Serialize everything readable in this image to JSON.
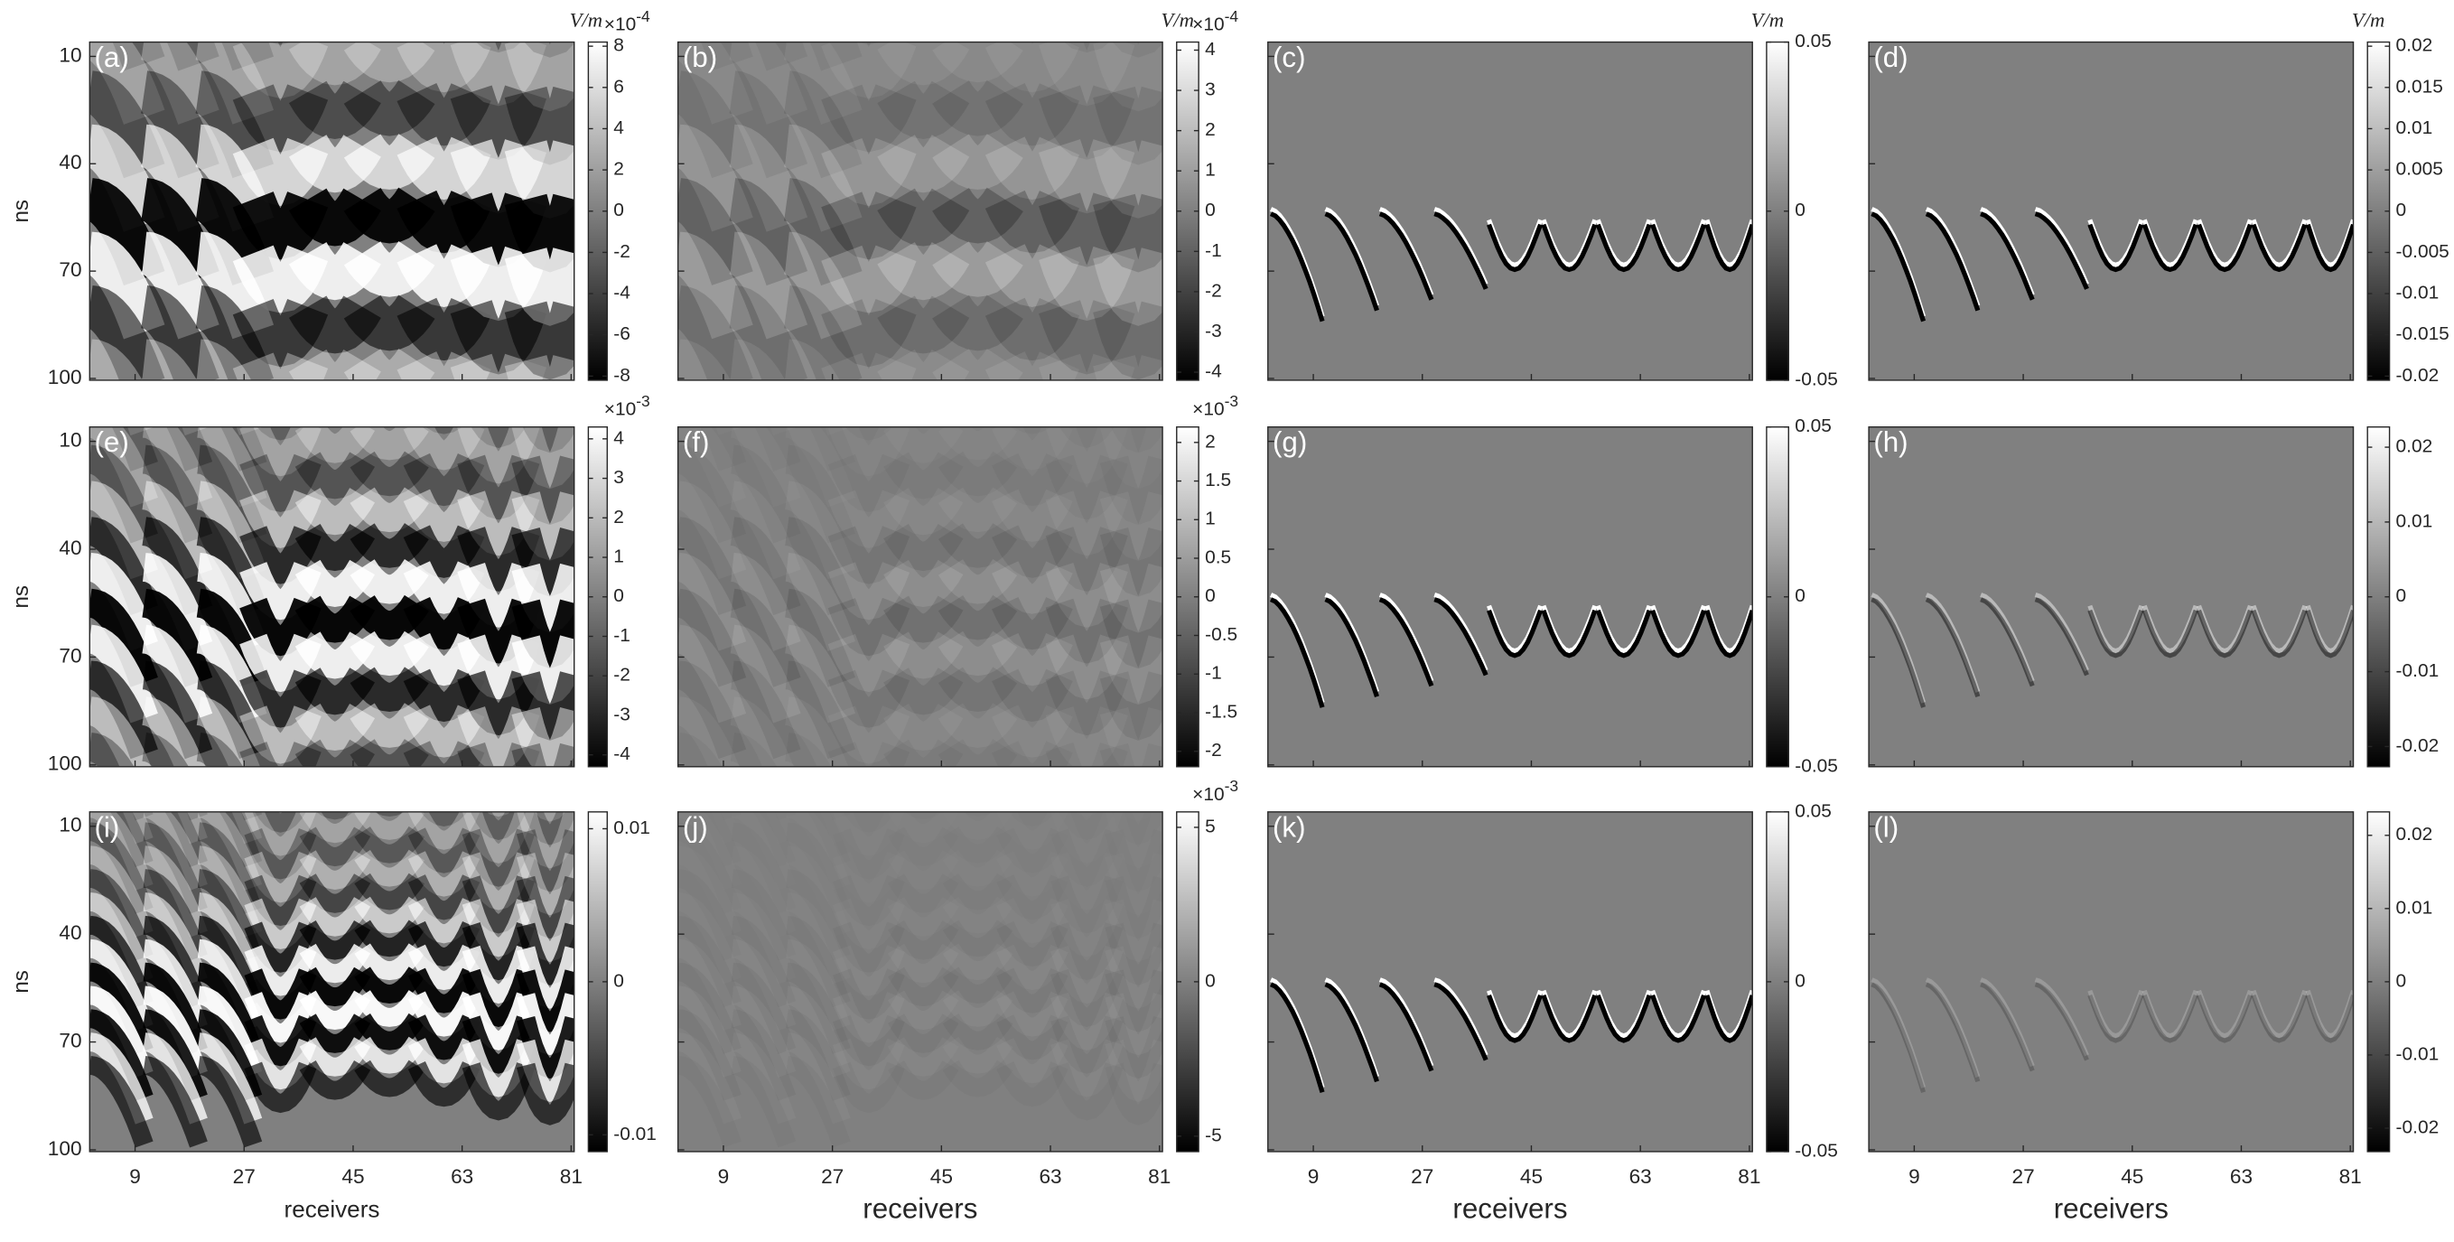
{
  "chart_data": [
    {
      "type": "heatmap",
      "label": "(a)",
      "ylabel": "ns",
      "xlim": [
        1.5,
        81.5
      ],
      "xticks": [
        9,
        27,
        45,
        63,
        81
      ],
      "ylim": [
        6,
        100.5
      ],
      "yticks": [
        10,
        40,
        70,
        100
      ],
      "colorbar": {
        "unit": "V/m",
        "multiplier": "×10",
        "exponent": "-4",
        "lim": [
          -8.2,
          8.2
        ],
        "ticks": [
          -8,
          -6,
          -4,
          -2,
          0,
          2,
          4,
          6,
          8
        ]
      }
    },
    {
      "type": "heatmap",
      "label": "(b)",
      "xlim": [
        1.5,
        81.5
      ],
      "xticks": [
        9,
        27,
        45,
        63,
        81
      ],
      "ylim": [
        6,
        100.5
      ],
      "yticks": [
        10,
        40,
        70,
        100
      ],
      "colorbar": {
        "unit": "V/m",
        "multiplier": "×10",
        "exponent": "-4",
        "lim": [
          -4.2,
          4.2
        ],
        "ticks": [
          -4,
          -3,
          -2,
          -1,
          0,
          1,
          2,
          3,
          4
        ]
      }
    },
    {
      "type": "heatmap",
      "label": "(c)",
      "xlim": [
        1.5,
        81.5
      ],
      "xticks": [
        9,
        27,
        45,
        63,
        81
      ],
      "ylim": [
        6,
        100.5
      ],
      "yticks": [
        10,
        40,
        70,
        100
      ],
      "colorbar": {
        "unit": "V/m",
        "lim": [
          -0.05,
          0.05
        ],
        "ticks": [
          -0.05,
          0,
          0.05
        ]
      }
    },
    {
      "type": "heatmap",
      "label": "(d)",
      "xlim": [
        1.5,
        81.5
      ],
      "xticks": [
        9,
        27,
        45,
        63,
        81
      ],
      "ylim": [
        6,
        100.5
      ],
      "yticks": [
        10,
        40,
        70,
        100
      ],
      "colorbar": {
        "unit": "V/m",
        "lim": [
          -0.0205,
          0.0205
        ],
        "ticks": [
          -0.02,
          -0.015,
          -0.01,
          -0.005,
          0,
          0.005,
          0.01,
          0.015,
          0.02
        ]
      }
    },
    {
      "type": "heatmap",
      "label": "(e)",
      "ylabel": "ns",
      "xlim": [
        1.5,
        81.5
      ],
      "xticks": [
        9,
        27,
        45,
        63,
        81
      ],
      "ylim": [
        6,
        100.5
      ],
      "yticks": [
        10,
        40,
        70,
        100
      ],
      "colorbar": {
        "multiplier": "×10",
        "exponent": "-3",
        "lim": [
          -4.3,
          4.3
        ],
        "ticks": [
          -4,
          -3,
          -2,
          -1,
          0,
          1,
          2,
          3,
          4
        ]
      }
    },
    {
      "type": "heatmap",
      "label": "(f)",
      "xlim": [
        1.5,
        81.5
      ],
      "xticks": [
        9,
        27,
        45,
        63,
        81
      ],
      "ylim": [
        6,
        100.5
      ],
      "yticks": [
        10,
        40,
        70,
        100
      ],
      "colorbar": {
        "multiplier": "×10",
        "exponent": "-3",
        "lim": [
          -2.2,
          2.2
        ],
        "ticks": [
          -2,
          -1.5,
          -1,
          -0.5,
          0,
          0.5,
          1,
          1.5,
          2
        ]
      }
    },
    {
      "type": "heatmap",
      "label": "(g)",
      "xlim": [
        1.5,
        81.5
      ],
      "xticks": [
        9,
        27,
        45,
        63,
        81
      ],
      "ylim": [
        6,
        100.5
      ],
      "yticks": [
        10,
        40,
        70,
        100
      ],
      "colorbar": {
        "lim": [
          -0.05,
          0.05
        ],
        "ticks": [
          -0.05,
          0,
          0.05
        ]
      }
    },
    {
      "type": "heatmap",
      "label": "(h)",
      "xlim": [
        1.5,
        81.5
      ],
      "xticks": [
        9,
        27,
        45,
        63,
        81
      ],
      "ylim": [
        6,
        100.5
      ],
      "yticks": [
        10,
        40,
        70,
        100
      ],
      "colorbar": {
        "lim": [
          -0.0227,
          0.0227
        ],
        "ticks": [
          -0.02,
          -0.01,
          0,
          0.01,
          0.02
        ]
      }
    },
    {
      "type": "heatmap",
      "label": "(i)",
      "ylabel": "ns",
      "xlabel": "receivers",
      "xlim": [
        1.5,
        81.5
      ],
      "xticks": [
        9,
        27,
        45,
        63,
        81
      ],
      "ylim": [
        6,
        100.5
      ],
      "yticks": [
        10,
        40,
        70,
        100
      ],
      "colorbar": {
        "lim": [
          -0.0111,
          0.0111
        ],
        "ticks": [
          -0.01,
          0,
          0.01
        ]
      }
    },
    {
      "type": "heatmap",
      "label": "(j)",
      "xlabel": "receivers",
      "xlim": [
        1.5,
        81.5
      ],
      "xticks": [
        9,
        27,
        45,
        63,
        81
      ],
      "ylim": [
        6,
        100.5
      ],
      "yticks": [
        10,
        40,
        70,
        100
      ],
      "colorbar": {
        "multiplier": "×10",
        "exponent": "-3",
        "lim": [
          -5.5,
          5.5
        ],
        "ticks": [
          -5,
          0,
          5
        ]
      }
    },
    {
      "type": "heatmap",
      "label": "(k)",
      "xlabel": "receivers",
      "xlim": [
        1.5,
        81.5
      ],
      "xticks": [
        9,
        27,
        45,
        63,
        81
      ],
      "ylim": [
        6,
        100.5
      ],
      "yticks": [
        10,
        40,
        70,
        100
      ],
      "colorbar": {
        "lim": [
          -0.05,
          0.05
        ],
        "ticks": [
          -0.05,
          0,
          0.05
        ]
      }
    },
    {
      "type": "heatmap",
      "label": "(l)",
      "xlabel": "receivers",
      "xlim": [
        1.5,
        81.5
      ],
      "xticks": [
        9,
        27,
        45,
        63,
        81
      ],
      "ylim": [
        6,
        100.5
      ],
      "yticks": [
        10,
        40,
        70,
        100
      ],
      "colorbar": {
        "lim": [
          -0.0232,
          0.0232
        ],
        "ticks": [
          -0.02,
          -0.01,
          0,
          0.01,
          0.02
        ]
      }
    }
  ]
}
